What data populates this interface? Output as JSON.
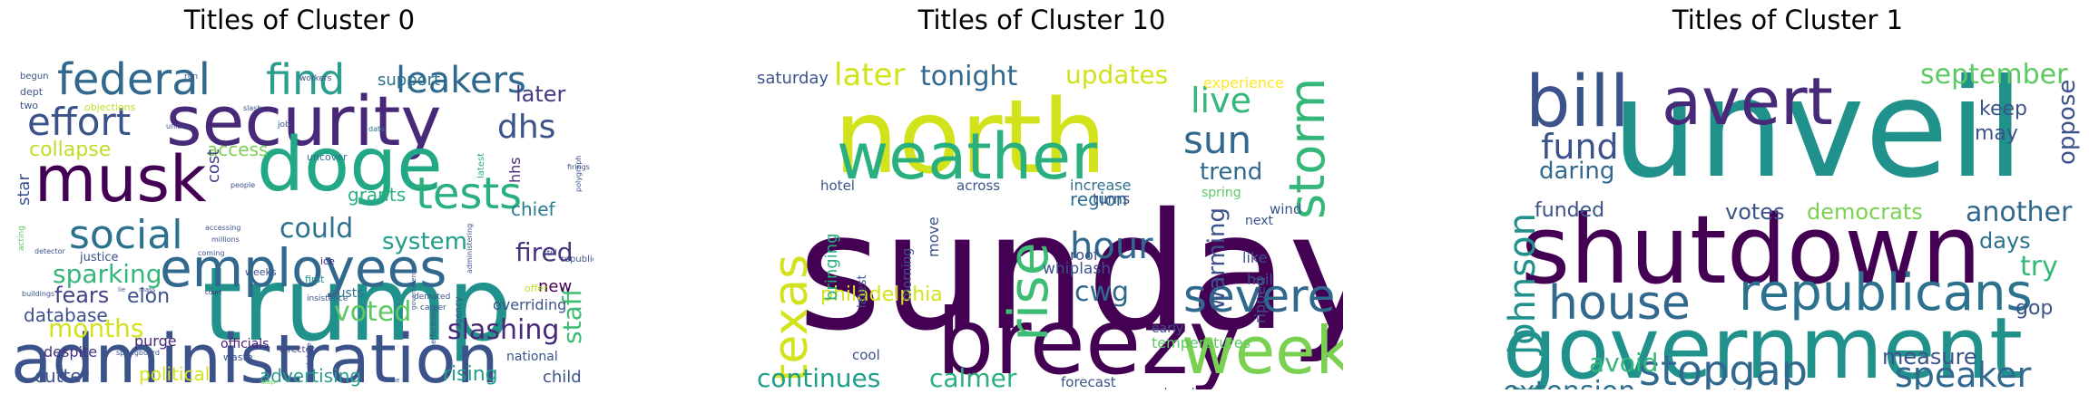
{
  "panels": [
    {
      "title": "Titles of Cluster 0",
      "words": [
        {
          "t": "trump",
          "c": "#21918c"
        },
        {
          "t": "administration",
          "c": "#3b528b"
        },
        {
          "t": "security",
          "c": "#482878"
        },
        {
          "t": "doge",
          "c": "#22a884"
        },
        {
          "t": "musk",
          "c": "#440154"
        },
        {
          "t": "employees",
          "c": "#31688e"
        },
        {
          "t": "federal",
          "c": "#31688e"
        },
        {
          "t": "find",
          "c": "#2a9d8f"
        },
        {
          "t": "leakers",
          "c": "#31688e"
        },
        {
          "t": "effort",
          "c": "#3b528b"
        },
        {
          "t": "tests",
          "c": "#2ab07f"
        },
        {
          "t": "social",
          "c": "#2c728e"
        },
        {
          "t": "dhs",
          "c": "#3b528b"
        },
        {
          "t": "sparking",
          "c": "#35b779"
        },
        {
          "t": "collapse",
          "c": "#bddf26"
        },
        {
          "t": "access",
          "c": "#7ad151"
        },
        {
          "t": "could",
          "c": "#2c728e"
        },
        {
          "t": "system",
          "c": "#1f9e89"
        },
        {
          "t": "slashing",
          "c": "#482878"
        },
        {
          "t": "fired",
          "c": "#46327e"
        },
        {
          "t": "fears",
          "c": "#414487"
        },
        {
          "t": "elon",
          "c": "#3b528b"
        },
        {
          "t": "months",
          "c": "#d2e21b"
        },
        {
          "t": "voted",
          "c": "#5ec962"
        },
        {
          "t": "staff",
          "c": "#3dbc74"
        },
        {
          "t": "grants",
          "c": "#2ab07f"
        },
        {
          "t": "later",
          "c": "#443983"
        },
        {
          "t": "chief",
          "c": "#287c8e"
        },
        {
          "t": "support",
          "c": "#2c728e"
        },
        {
          "t": "database",
          "c": "#3b528b"
        },
        {
          "t": "advertising",
          "c": "#2a9d8f"
        },
        {
          "t": "political",
          "c": "#d2e21b"
        },
        {
          "t": "rising",
          "c": "#1f9e89"
        },
        {
          "t": "cutter",
          "c": "#3b528b"
        },
        {
          "t": "child",
          "c": "#3b528b"
        },
        {
          "t": "despite",
          "c": "#46327e"
        },
        {
          "t": "purge",
          "c": "#482878"
        },
        {
          "t": "officials",
          "c": "#481f70"
        },
        {
          "t": "national",
          "c": "#3b528b"
        },
        {
          "t": "overriding",
          "c": "#3b528b"
        },
        {
          "t": "new",
          "c": "#440154"
        },
        {
          "t": "star",
          "c": "#3b528b"
        },
        {
          "t": "cost",
          "c": "#414487"
        },
        {
          "t": "hhs",
          "c": "#482878"
        },
        {
          "t": "justice",
          "c": "#3b528b"
        },
        {
          "t": "ousts",
          "c": "#2c728e"
        },
        {
          "t": "waste",
          "c": "#3b528b"
        },
        {
          "t": "director",
          "c": "#414487"
        },
        {
          "t": "weeks",
          "c": "#3b528b"
        },
        {
          "t": "first",
          "c": "#21918c"
        },
        {
          "t": "ice",
          "c": "#482878"
        },
        {
          "t": "uncover",
          "c": "#2c728e"
        },
        {
          "t": "job",
          "c": "#3b528b"
        },
        {
          "t": "objections",
          "c": "#bddf26"
        },
        {
          "t": "two",
          "c": "#3b528b"
        },
        {
          "t": "dept",
          "c": "#3b528b"
        },
        {
          "t": "begun",
          "c": "#3b528b"
        },
        {
          "t": "workers",
          "c": "#3b528b"
        },
        {
          "t": "run",
          "c": "#3b528b"
        },
        {
          "t": "slash",
          "c": "#3b528b"
        },
        {
          "t": "unions",
          "c": "#3b528b"
        },
        {
          "t": "data",
          "c": "#2c728e"
        },
        {
          "t": "firings",
          "c": "#3b528b"
        },
        {
          "t": "latest",
          "c": "#2ab07f"
        },
        {
          "t": "people",
          "c": "#3b528b"
        },
        {
          "t": "accessing",
          "c": "#3b528b"
        },
        {
          "t": "millions",
          "c": "#3b528b"
        },
        {
          "t": "coming",
          "c": "#3b528b"
        },
        {
          "t": "detector",
          "c": "#3b528b"
        },
        {
          "t": "buildings",
          "c": "#3b528b"
        },
        {
          "t": "acting",
          "c": "#5ec962"
        },
        {
          "t": "lie",
          "c": "#3b528b"
        },
        {
          "t": "mass",
          "c": "#3b528b"
        },
        {
          "t": "court",
          "c": "#482878"
        },
        {
          "t": "insistence",
          "c": "#3b528b"
        },
        {
          "t": "demoted",
          "c": "#3b528b"
        },
        {
          "t": "career",
          "c": "#3b528b"
        },
        {
          "t": "still",
          "c": "#3b528b"
        },
        {
          "t": "offer",
          "c": "#bddf26"
        },
        {
          "t": "republicans",
          "c": "#3b528b"
        },
        {
          "t": "administering",
          "c": "#3b528b"
        },
        {
          "t": "polygraph",
          "c": "#3b528b"
        },
        {
          "t": "performing",
          "c": "#3b528b"
        },
        {
          "t": "sue",
          "c": "#3b528b"
        },
        {
          "t": "stop",
          "c": "#7ad151"
        },
        {
          "t": "agency",
          "c": "#3b528b"
        },
        {
          "t": "springboard",
          "c": "#3b528b"
        },
        {
          "t": "statute",
          "c": "#3b528b"
        },
        {
          "t": "government",
          "c": "#3b528b"
        }
      ]
    },
    {
      "title": "Titles of Cluster 10",
      "words": [
        {
          "t": "north",
          "c": "#d2e21b"
        },
        {
          "t": "sunday",
          "c": "#440154"
        },
        {
          "t": "breezy",
          "c": "#440154"
        },
        {
          "t": "weather",
          "c": "#2ab07f"
        },
        {
          "t": "week",
          "c": "#7ad151"
        },
        {
          "t": "severe",
          "c": "#31688e"
        },
        {
          "t": "texas",
          "c": "#d2e21b"
        },
        {
          "t": "storm",
          "c": "#35b779"
        },
        {
          "t": "rise",
          "c": "#3dbc74"
        },
        {
          "t": "hour",
          "c": "#31688e"
        },
        {
          "t": "sun",
          "c": "#31688e"
        },
        {
          "t": "live",
          "c": "#35b779"
        },
        {
          "t": "later",
          "c": "#d2e21b"
        },
        {
          "t": "tonight",
          "c": "#31688e"
        },
        {
          "t": "updates",
          "c": "#d2e21b"
        },
        {
          "t": "cwg",
          "c": "#31688e"
        },
        {
          "t": "trend",
          "c": "#31688e"
        },
        {
          "t": "continues",
          "c": "#1f9e89"
        },
        {
          "t": "calmer",
          "c": "#2ab07f"
        },
        {
          "t": "warming",
          "c": "#3b528b"
        },
        {
          "t": "philadelphia",
          "c": "#d2e21b"
        },
        {
          "t": "saturday",
          "c": "#3b528b"
        },
        {
          "t": "region",
          "c": "#2c728e"
        },
        {
          "t": "experience",
          "c": "#fde725"
        },
        {
          "t": "spring",
          "c": "#5ec962"
        },
        {
          "t": "hotel",
          "c": "#3b528b"
        },
        {
          "t": "across",
          "c": "#3b528b"
        },
        {
          "t": "increase",
          "c": "#2c728e"
        },
        {
          "t": "turns",
          "c": "#3b528b"
        },
        {
          "t": "next",
          "c": "#3b528b"
        },
        {
          "t": "wind",
          "c": "#3b528b"
        },
        {
          "t": "latest",
          "c": "#3b528b"
        },
        {
          "t": "bringing",
          "c": "#2ab07f"
        },
        {
          "t": "morning",
          "c": "#3b528b"
        },
        {
          "t": "move",
          "c": "#3b528b"
        },
        {
          "t": "roof",
          "c": "#3b528b"
        },
        {
          "t": "whiplash",
          "c": "#3b528b"
        },
        {
          "t": "like",
          "c": "#3b528b"
        },
        {
          "t": "ripped",
          "c": "#3b528b"
        },
        {
          "t": "hail",
          "c": "#3b528b"
        },
        {
          "t": "early",
          "c": "#3b528b"
        },
        {
          "t": "temperatures",
          "c": "#5ec962"
        },
        {
          "t": "cool",
          "c": "#3b528b"
        },
        {
          "t": "forecast",
          "c": "#3b528b"
        },
        {
          "t": "weekend",
          "c": "#3b528b"
        },
        {
          "t": "texans",
          "c": "#3b528b"
        }
      ]
    },
    {
      "title": "Titles of Cluster 1",
      "words": [
        {
          "t": "unveil",
          "c": "#21918c"
        },
        {
          "t": "shutdown",
          "c": "#440154"
        },
        {
          "t": "government",
          "c": "#21918c"
        },
        {
          "t": "bill",
          "c": "#3b528b"
        },
        {
          "t": "avert",
          "c": "#482878"
        },
        {
          "t": "republicans",
          "c": "#2c728e"
        },
        {
          "t": "house",
          "c": "#31688e"
        },
        {
          "t": "stopgap",
          "c": "#31688e"
        },
        {
          "t": "johnson",
          "c": "#21918c"
        },
        {
          "t": "speaker",
          "c": "#31688e"
        },
        {
          "t": "fund",
          "c": "#3b528b"
        },
        {
          "t": "september",
          "c": "#5ec962"
        },
        {
          "t": "extension",
          "c": "#2c728e"
        },
        {
          "t": "avoid",
          "c": "#35b779"
        },
        {
          "t": "another",
          "c": "#31688e"
        },
        {
          "t": "democrats",
          "c": "#7ad151"
        },
        {
          "t": "daring",
          "c": "#31688e"
        },
        {
          "t": "measure",
          "c": "#3b528b"
        },
        {
          "t": "votes",
          "c": "#3b528b"
        },
        {
          "t": "funded",
          "c": "#3b528b"
        },
        {
          "t": "days",
          "c": "#2c728e"
        },
        {
          "t": "oppose",
          "c": "#3b528b"
        },
        {
          "t": "try",
          "c": "#35b779"
        },
        {
          "t": "keep",
          "c": "#3b528b"
        },
        {
          "t": "gop",
          "c": "#3b528b"
        },
        {
          "t": "may",
          "c": "#3b528b"
        }
      ]
    }
  ]
}
